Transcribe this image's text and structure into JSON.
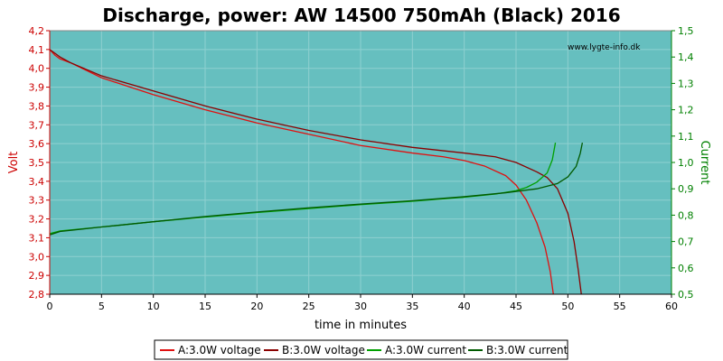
{
  "chart_data": {
    "type": "line",
    "title": "Discharge, power: AW 14500 750mAh (Black) 2016",
    "watermark": "www.lygte-info.dk",
    "xlabel": "time in minutes",
    "ylabel_left": "Volt",
    "ylabel_right": "Current",
    "xlim": [
      0,
      60
    ],
    "ylim_left": [
      2.8,
      4.2
    ],
    "ylim_right": [
      0.5,
      1.5
    ],
    "xticks": [
      "0",
      "5",
      "10",
      "15",
      "20",
      "25",
      "30",
      "35",
      "40",
      "45",
      "50",
      "55",
      "60"
    ],
    "yticks_left": [
      "2,8",
      "2,9",
      "3,0",
      "3,1",
      "3,2",
      "3,3",
      "3,4",
      "3,5",
      "3,6",
      "3,7",
      "3,8",
      "3,9",
      "4,0",
      "4,1",
      "4,2"
    ],
    "yticks_right": [
      "0,5",
      "0,6",
      "0,7",
      "0,8",
      "0,9",
      "1,0",
      "1,1",
      "1,2",
      "1,3",
      "1,4",
      "1,5"
    ],
    "grid": true,
    "legend_placement": "bottom",
    "colors": {
      "plot_bg": "#66bfbf",
      "grid": "#8fd0d0",
      "voltage_a": "#e01010",
      "voltage_b": "#8b0000",
      "current_a": "#00a000",
      "current_b": "#005a00",
      "left_axis": "#cc0000",
      "right_axis": "#008000"
    },
    "series": [
      {
        "name": "A:3.0W voltage",
        "axis": "left",
        "color": "#e01010",
        "points": [
          [
            0,
            4.1
          ],
          [
            0.5,
            4.07
          ],
          [
            1,
            4.05
          ],
          [
            2,
            4.03
          ],
          [
            5,
            3.95
          ],
          [
            10,
            3.86
          ],
          [
            15,
            3.78
          ],
          [
            20,
            3.71
          ],
          [
            25,
            3.65
          ],
          [
            30,
            3.59
          ],
          [
            35,
            3.55
          ],
          [
            38,
            3.53
          ],
          [
            40,
            3.51
          ],
          [
            42,
            3.48
          ],
          [
            44,
            3.43
          ],
          [
            45,
            3.38
          ],
          [
            46,
            3.3
          ],
          [
            47,
            3.18
          ],
          [
            47.8,
            3.05
          ],
          [
            48.3,
            2.92
          ],
          [
            48.6,
            2.8
          ]
        ]
      },
      {
        "name": "B:3.0W voltage",
        "axis": "left",
        "color": "#8b0000",
        "points": [
          [
            0,
            4.1
          ],
          [
            0.5,
            4.08
          ],
          [
            1,
            4.06
          ],
          [
            2,
            4.03
          ],
          [
            5,
            3.96
          ],
          [
            10,
            3.88
          ],
          [
            15,
            3.8
          ],
          [
            20,
            3.73
          ],
          [
            25,
            3.67
          ],
          [
            30,
            3.62
          ],
          [
            35,
            3.58
          ],
          [
            40,
            3.55
          ],
          [
            43,
            3.53
          ],
          [
            45,
            3.5
          ],
          [
            47,
            3.45
          ],
          [
            48,
            3.42
          ],
          [
            49,
            3.36
          ],
          [
            50,
            3.23
          ],
          [
            50.6,
            3.08
          ],
          [
            51,
            2.93
          ],
          [
            51.3,
            2.8
          ]
        ]
      },
      {
        "name": "A:3.0W current",
        "axis": "right",
        "color": "#00a000",
        "points": [
          [
            0,
            0.73
          ],
          [
            1,
            0.74
          ],
          [
            5,
            0.755
          ],
          [
            10,
            0.775
          ],
          [
            15,
            0.793
          ],
          [
            20,
            0.81
          ],
          [
            25,
            0.825
          ],
          [
            30,
            0.84
          ],
          [
            35,
            0.853
          ],
          [
            40,
            0.868
          ],
          [
            43,
            0.88
          ],
          [
            45,
            0.893
          ],
          [
            46,
            0.905
          ],
          [
            47,
            0.925
          ],
          [
            48,
            0.96
          ],
          [
            48.5,
            1.01
          ],
          [
            48.8,
            1.075
          ]
        ]
      },
      {
        "name": "B:3.0W current",
        "axis": "right",
        "color": "#005a00",
        "points": [
          [
            0,
            0.725
          ],
          [
            1,
            0.738
          ],
          [
            5,
            0.755
          ],
          [
            10,
            0.775
          ],
          [
            15,
            0.795
          ],
          [
            20,
            0.812
          ],
          [
            25,
            0.828
          ],
          [
            30,
            0.842
          ],
          [
            35,
            0.855
          ],
          [
            40,
            0.87
          ],
          [
            44,
            0.885
          ],
          [
            47,
            0.9
          ],
          [
            49,
            0.92
          ],
          [
            50,
            0.945
          ],
          [
            50.8,
            0.985
          ],
          [
            51.2,
            1.035
          ],
          [
            51.4,
            1.075
          ]
        ]
      }
    ]
  }
}
